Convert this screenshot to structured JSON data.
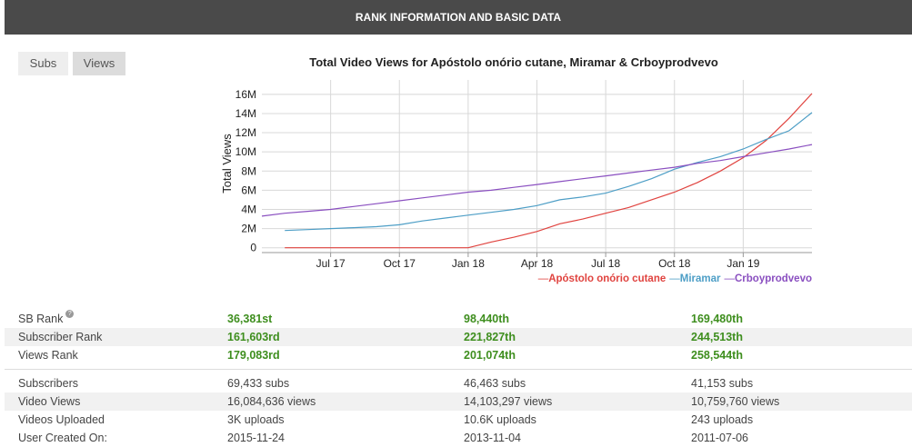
{
  "header": {
    "title": "RANK INFORMATION AND BASIC DATA"
  },
  "tabs": [
    "Subs",
    "Views"
  ],
  "chart_data": {
    "type": "line",
    "title": "Total Video Views for Apóstolo onório cutane, Miramar & Crboyprodvevo",
    "y_label": "Total Views",
    "x": [
      "2017-04",
      "2017-05",
      "2017-06",
      "2017-07",
      "2017-08",
      "2017-09",
      "2017-10",
      "2017-11",
      "2017-12",
      "2018-01",
      "2018-02",
      "2018-03",
      "2018-04",
      "2018-05",
      "2018-06",
      "2018-07",
      "2018-08",
      "2018-09",
      "2018-10",
      "2018-11",
      "2018-12",
      "2019-01",
      "2019-02",
      "2019-03",
      "2019-04"
    ],
    "xlim": [
      "2017-04",
      "2019-04"
    ],
    "xticks": [
      {
        "value": "2017-07",
        "label": "Jul 17"
      },
      {
        "value": "2017-10",
        "label": "Oct 17"
      },
      {
        "value": "2018-01",
        "label": "Jan 18"
      },
      {
        "value": "2018-04",
        "label": "Apr 18"
      },
      {
        "value": "2018-07",
        "label": "Jul 18"
      },
      {
        "value": "2018-10",
        "label": "Oct 18"
      },
      {
        "value": "2019-01",
        "label": "Jan 19"
      }
    ],
    "ylim": [
      -500000,
      17500000
    ],
    "yticks": [
      0,
      {
        "value": 2000000,
        "label": "2M"
      },
      {
        "value": 4000000,
        "label": "4M"
      },
      {
        "value": 6000000,
        "label": "6M"
      },
      {
        "value": 8000000,
        "label": "8M"
      },
      {
        "value": 10000000,
        "label": "10M"
      },
      {
        "value": 12000000,
        "label": "12M"
      },
      {
        "value": 14000000,
        "label": "14M"
      },
      {
        "value": 16000000,
        "label": "16M"
      }
    ],
    "grid": true,
    "legend": "bottom-right",
    "series": [
      {
        "name": "Apóstolo onório cutane",
        "color": "#e0433f",
        "values": [
          null,
          0,
          0,
          0,
          0,
          0,
          0,
          0,
          0,
          0,
          600000,
          1100000,
          1700000,
          2500000,
          3000000,
          3600000,
          4200000,
          5000000,
          5800000,
          6800000,
          8000000,
          9400000,
          11200000,
          13500000,
          16084636
        ]
      },
      {
        "name": "Miramar",
        "color": "#4d9ec6",
        "values": [
          null,
          1800000,
          1900000,
          2000000,
          2100000,
          2200000,
          2400000,
          2800000,
          3100000,
          3400000,
          3700000,
          4000000,
          4400000,
          5000000,
          5300000,
          5700000,
          6400000,
          7200000,
          8200000,
          8900000,
          9500000,
          10300000,
          11300000,
          12200000,
          14103297
        ]
      },
      {
        "name": "Crboyprodvevo",
        "color": "#8a4fc0",
        "values": [
          3300000,
          3600000,
          3800000,
          4000000,
          4300000,
          4600000,
          4900000,
          5200000,
          5500000,
          5800000,
          6000000,
          6300000,
          6600000,
          6900000,
          7200000,
          7500000,
          7800000,
          8100000,
          8400000,
          8800000,
          9100000,
          9500000,
          9900000,
          10300000,
          10759760
        ]
      }
    ]
  },
  "table": {
    "groups": [
      {
        "rows": [
          {
            "label": "SB Rank",
            "values": [
              "36,381st",
              "98,440th",
              "169,480th"
            ]
          },
          {
            "label": "Subscriber Rank",
            "values": [
              "161,603rd",
              "221,827th",
              "244,513th"
            ]
          },
          {
            "label": "Views Rank",
            "values": [
              "179,083rd",
              "201,074th",
              "258,544th"
            ]
          }
        ]
      },
      {
        "rows": [
          {
            "label": "Subscribers",
            "values": [
              "69,433 subs",
              "46,463 subs",
              "41,153 subs"
            ]
          },
          {
            "label": "Video Views",
            "values": [
              "16,084,636 views",
              "14,103,297 views",
              "10,759,760 views"
            ]
          },
          {
            "label": "Videos Uploaded",
            "values": [
              "3K uploads",
              "10.6K uploads",
              "243 uploads"
            ]
          },
          {
            "label": "User Created On:",
            "values": [
              "2015-11-24",
              "2013-11-04",
              "2011-07-06"
            ]
          }
        ]
      }
    ]
  }
}
